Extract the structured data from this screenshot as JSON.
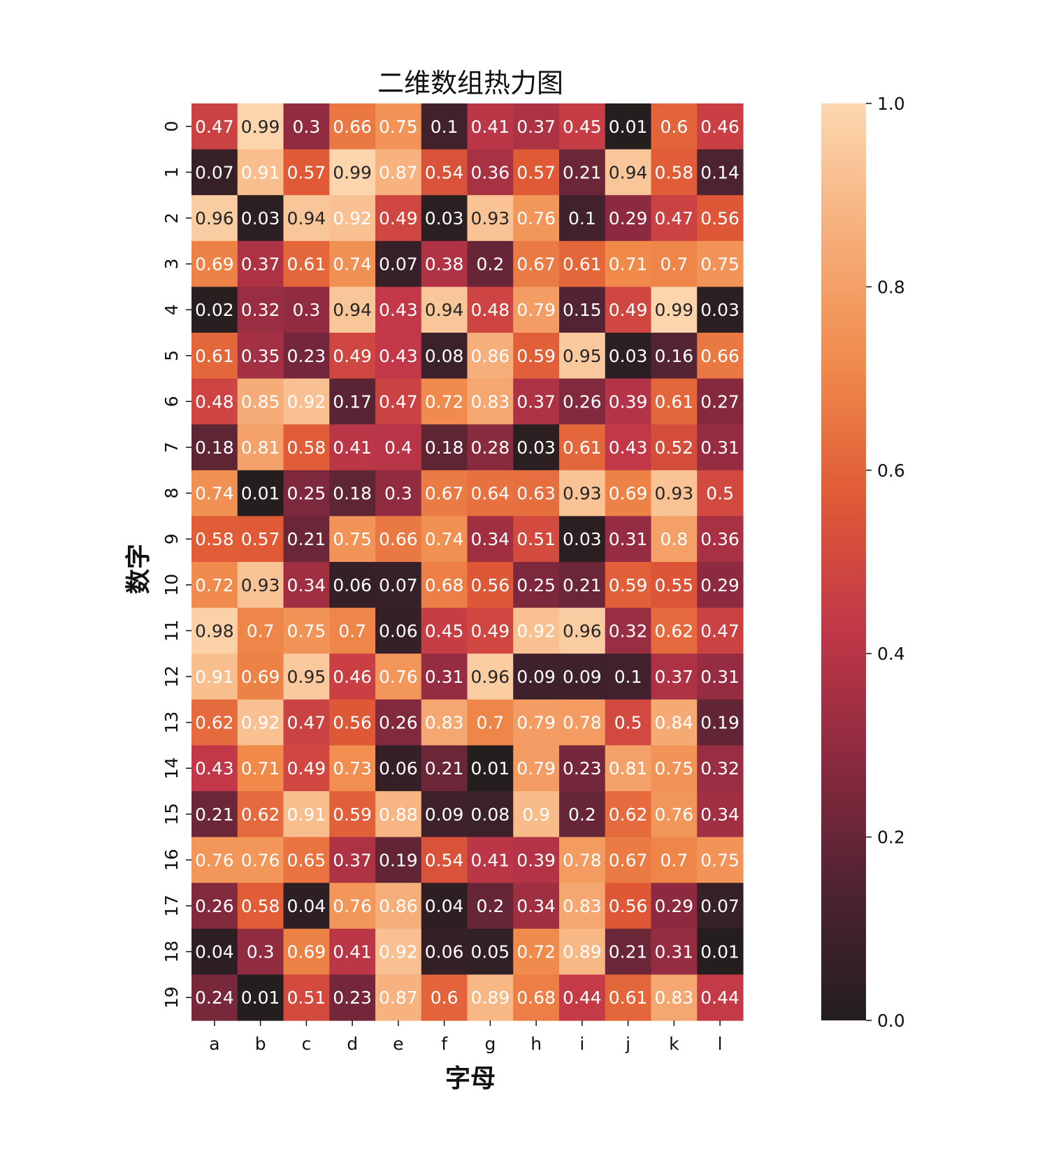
{
  "chart_data": {
    "type": "heatmap",
    "title": "二维数组热力图",
    "xlabel": "字母",
    "ylabel": "数字",
    "x_categories": [
      "a",
      "b",
      "c",
      "d",
      "e",
      "f",
      "g",
      "h",
      "i",
      "j",
      "k",
      "l"
    ],
    "y_categories": [
      "0",
      "1",
      "2",
      "3",
      "4",
      "5",
      "6",
      "7",
      "8",
      "9",
      "10",
      "11",
      "12",
      "13",
      "14",
      "15",
      "16",
      "17",
      "18",
      "19"
    ],
    "values": [
      [
        0.47,
        0.99,
        0.3,
        0.66,
        0.75,
        0.1,
        0.41,
        0.37,
        0.45,
        0.01,
        0.6,
        0.46
      ],
      [
        0.07,
        0.91,
        0.57,
        0.99,
        0.87,
        0.54,
        0.36,
        0.57,
        0.21,
        0.94,
        0.58,
        0.14
      ],
      [
        0.96,
        0.03,
        0.94,
        0.92,
        0.49,
        0.03,
        0.93,
        0.76,
        0.1,
        0.29,
        0.47,
        0.56
      ],
      [
        0.69,
        0.37,
        0.61,
        0.74,
        0.07,
        0.38,
        0.2,
        0.67,
        0.61,
        0.71,
        0.7,
        0.75
      ],
      [
        0.02,
        0.32,
        0.3,
        0.94,
        0.43,
        0.94,
        0.48,
        0.79,
        0.15,
        0.49,
        0.99,
        0.03
      ],
      [
        0.61,
        0.35,
        0.23,
        0.49,
        0.43,
        0.08,
        0.86,
        0.59,
        0.95,
        0.03,
        0.16,
        0.66
      ],
      [
        0.48,
        0.85,
        0.92,
        0.17,
        0.47,
        0.72,
        0.83,
        0.37,
        0.26,
        0.39,
        0.61,
        0.27
      ],
      [
        0.18,
        0.81,
        0.58,
        0.41,
        0.4,
        0.18,
        0.28,
        0.03,
        0.61,
        0.43,
        0.52,
        0.31
      ],
      [
        0.74,
        0.01,
        0.25,
        0.18,
        0.3,
        0.67,
        0.64,
        0.63,
        0.93,
        0.69,
        0.93,
        0.5
      ],
      [
        0.58,
        0.57,
        0.21,
        0.75,
        0.66,
        0.74,
        0.34,
        0.51,
        0.03,
        0.31,
        0.8,
        0.36
      ],
      [
        0.72,
        0.93,
        0.34,
        0.06,
        0.07,
        0.68,
        0.56,
        0.25,
        0.21,
        0.59,
        0.55,
        0.29
      ],
      [
        0.98,
        0.7,
        0.75,
        0.7,
        0.06,
        0.45,
        0.49,
        0.92,
        0.96,
        0.32,
        0.62,
        0.47
      ],
      [
        0.91,
        0.69,
        0.95,
        0.46,
        0.76,
        0.31,
        0.96,
        0.09,
        0.09,
        0.1,
        0.37,
        0.31
      ],
      [
        0.62,
        0.92,
        0.47,
        0.56,
        0.26,
        0.83,
        0.7,
        0.79,
        0.78,
        0.5,
        0.84,
        0.19
      ],
      [
        0.43,
        0.71,
        0.49,
        0.73,
        0.06,
        0.21,
        0.01,
        0.79,
        0.23,
        0.81,
        0.75,
        0.32
      ],
      [
        0.21,
        0.62,
        0.91,
        0.59,
        0.88,
        0.09,
        0.08,
        0.9,
        0.2,
        0.62,
        0.76,
        0.34
      ],
      [
        0.76,
        0.76,
        0.65,
        0.37,
        0.19,
        0.54,
        0.41,
        0.39,
        0.78,
        0.67,
        0.7,
        0.75
      ],
      [
        0.26,
        0.58,
        0.04,
        0.76,
        0.86,
        0.04,
        0.2,
        0.34,
        0.83,
        0.56,
        0.29,
        0.07
      ],
      [
        0.04,
        0.3,
        0.69,
        0.41,
        0.92,
        0.06,
        0.05,
        0.72,
        0.89,
        0.21,
        0.31,
        0.01
      ],
      [
        0.24,
        0.01,
        0.51,
        0.23,
        0.87,
        0.6,
        0.89,
        0.68,
        0.44,
        0.61,
        0.83,
        0.44
      ]
    ],
    "vmin": 0.0,
    "vmax": 1.0,
    "annotate": true,
    "colormap": [
      "#221e1e",
      "#4e2332",
      "#8c2a3f",
      "#c23848",
      "#e05a36",
      "#f08a4b",
      "#f6ae7a",
      "#fcd8b0"
    ],
    "colorbar": {
      "ticks": [
        0.0,
        0.2,
        0.4,
        0.6,
        0.8,
        1.0
      ],
      "tick_labels": [
        "0.0",
        "0.2",
        "0.4",
        "0.6",
        "0.8",
        "1.0"
      ],
      "position": "right"
    },
    "grid": false
  }
}
